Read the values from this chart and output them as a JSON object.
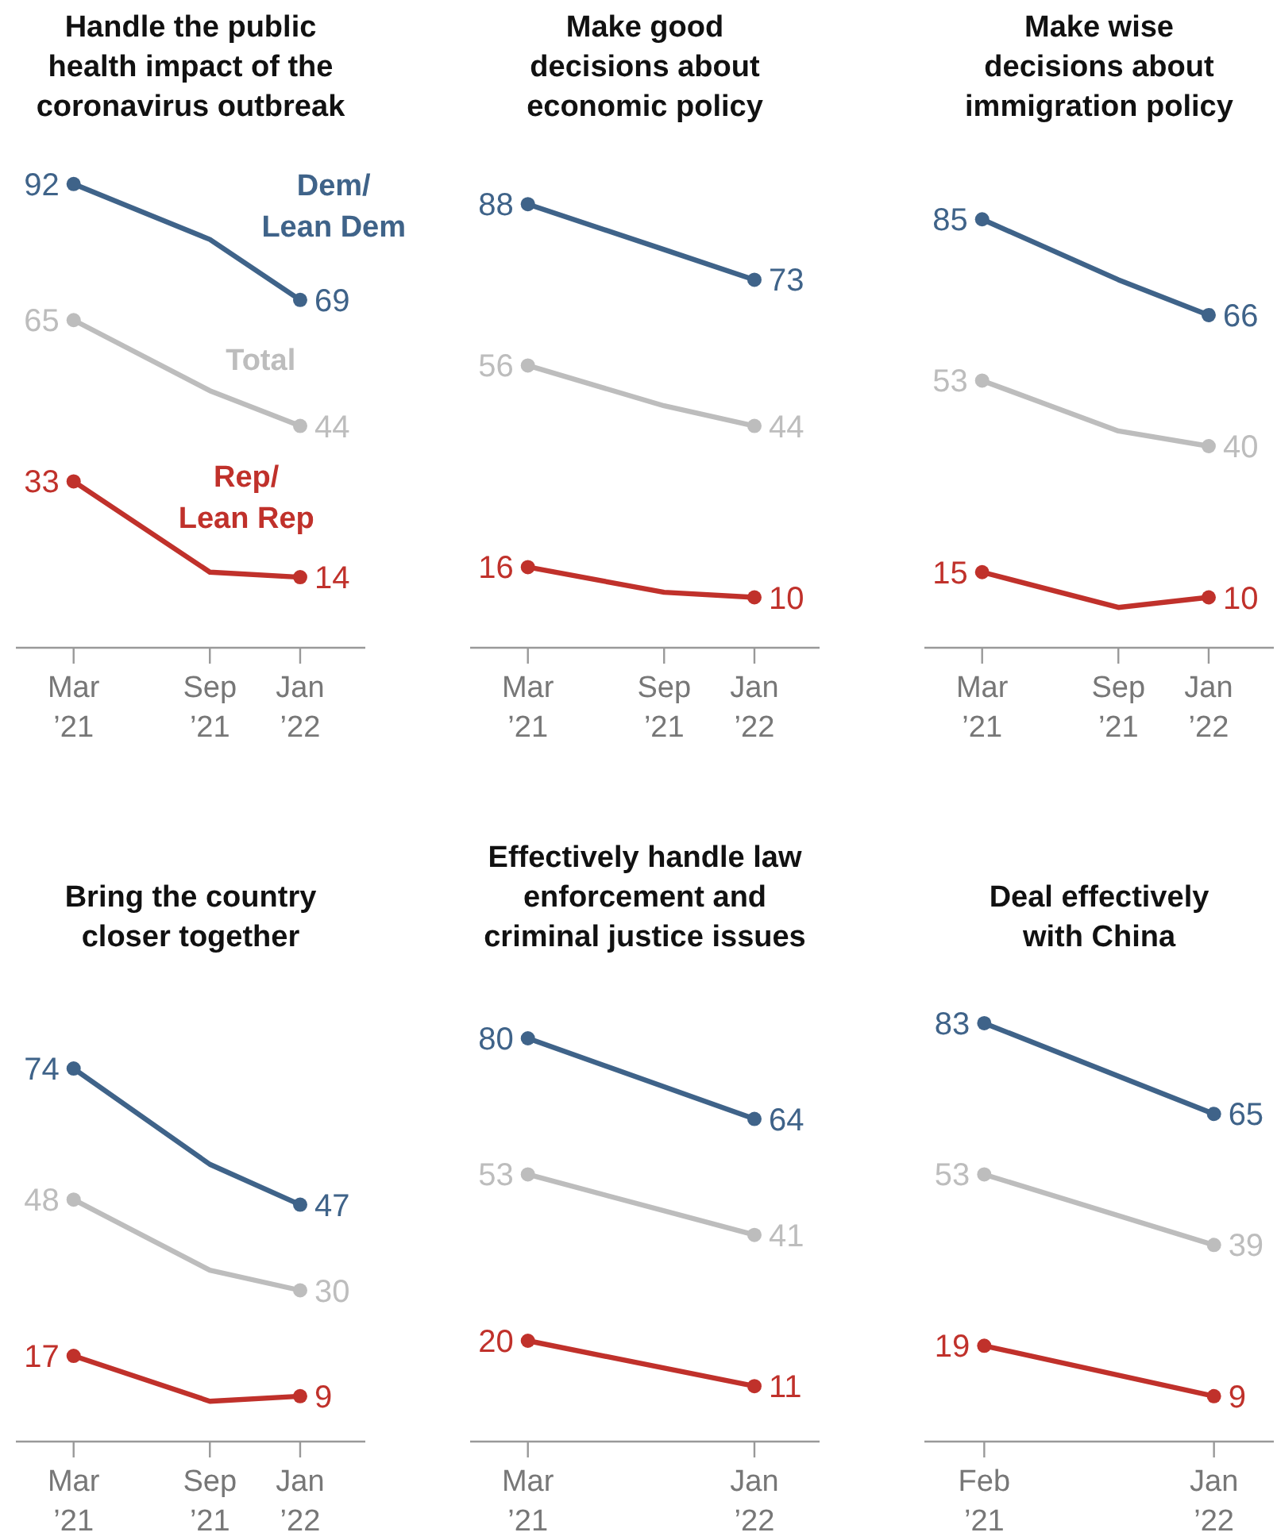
{
  "chart_data": [
    {
      "type": "line",
      "title": "Handle the public\nhealth impact of the\ncoronavirus outbreak",
      "x": [
        "2021-03",
        "2021-09",
        "2022-01"
      ],
      "xlim": [
        "2020-12-13",
        "2022-03-30"
      ],
      "xticks": [
        {
          "value": "2021-03",
          "label": "Mar\n’21"
        },
        {
          "value": "2021-09",
          "label": "Sep\n’21"
        },
        {
          "value": "2022-01",
          "label": "Jan\n’22"
        }
      ],
      "tick_labels": "x",
      "marker": "circle",
      "series": [
        {
          "name": "Dem/\nLean Dem",
          "color": "#3f6389",
          "values": [
            92,
            81,
            69
          ],
          "value_labels": [
            "92",
            null,
            "69"
          ]
        },
        {
          "name": "Total",
          "color": "#bdbdbd",
          "values": [
            65,
            51,
            44
          ],
          "value_labels": [
            "65",
            null,
            "44"
          ]
        },
        {
          "name": "Rep/\nLean Rep",
          "color": "#c0312b",
          "values": [
            33,
            15,
            14
          ],
          "value_labels": [
            "33",
            null,
            "14"
          ]
        }
      ]
    },
    {
      "type": "line",
      "title": "Make good\ndecisions about\neconomic policy",
      "x": [
        "2021-03",
        "2021-09",
        "2022-01"
      ],
      "xlim": [
        "2020-12-13",
        "2022-03-30"
      ],
      "xticks": [
        {
          "value": "2021-03",
          "label": "Mar\n’21"
        },
        {
          "value": "2021-09",
          "label": "Sep\n’21"
        },
        {
          "value": "2022-01",
          "label": "Jan\n’22"
        }
      ],
      "tick_labels": "x",
      "marker": "circle",
      "series": [
        {
          "color": "#3f6389",
          "values": [
            88,
            79,
            73
          ],
          "value_labels": [
            "88",
            null,
            "73"
          ]
        },
        {
          "color": "#bdbdbd",
          "values": [
            56,
            48,
            44
          ],
          "value_labels": [
            "56",
            null,
            "44"
          ]
        },
        {
          "color": "#c0312b",
          "values": [
            16,
            11,
            10
          ],
          "value_labels": [
            "16",
            null,
            "10"
          ]
        }
      ]
    },
    {
      "type": "line",
      "title": "Make wise\ndecisions about\nimmigration policy",
      "x": [
        "2021-03",
        "2021-09",
        "2022-01"
      ],
      "xlim": [
        "2020-12-13",
        "2022-03-30"
      ],
      "xticks": [
        {
          "value": "2021-03",
          "label": "Mar\n’21"
        },
        {
          "value": "2021-09",
          "label": "Sep\n’21"
        },
        {
          "value": "2022-01",
          "label": "Jan\n’22"
        }
      ],
      "tick_labels": "x",
      "marker": "circle",
      "series": [
        {
          "color": "#3f6389",
          "values": [
            85,
            73,
            66
          ],
          "value_labels": [
            "85",
            null,
            "66"
          ]
        },
        {
          "color": "#bdbdbd",
          "values": [
            53,
            43,
            40
          ],
          "value_labels": [
            "53",
            null,
            "40"
          ]
        },
        {
          "color": "#c0312b",
          "values": [
            15,
            8,
            10
          ],
          "value_labels": [
            "15",
            null,
            "10"
          ]
        }
      ]
    },
    {
      "type": "line",
      "title": "Bring the country\ncloser together",
      "x": [
        "2021-03",
        "2021-09",
        "2022-01"
      ],
      "xlim": [
        "2020-12-13",
        "2022-03-30"
      ],
      "xticks": [
        {
          "value": "2021-03",
          "label": "Mar\n’21"
        },
        {
          "value": "2021-09",
          "label": "Sep\n’21"
        },
        {
          "value": "2022-01",
          "label": "Jan\n’22"
        }
      ],
      "tick_labels": "x",
      "marker": "circle",
      "series": [
        {
          "color": "#3f6389",
          "values": [
            74,
            55,
            47
          ],
          "value_labels": [
            "74",
            null,
            "47"
          ]
        },
        {
          "color": "#bdbdbd",
          "values": [
            48,
            34,
            30
          ],
          "value_labels": [
            "48",
            null,
            "30"
          ]
        },
        {
          "color": "#c0312b",
          "values": [
            17,
            8,
            9
          ],
          "value_labels": [
            "17",
            null,
            "9"
          ]
        }
      ]
    },
    {
      "type": "line",
      "title": "Effectively handle law\nenforcement and\ncriminal justice issues",
      "x": [
        "2021-03",
        "2022-01"
      ],
      "xlim": [
        "2020-12-13",
        "2022-03-30"
      ],
      "xticks": [
        {
          "value": "2021-03",
          "label": "Mar\n’21"
        },
        {
          "value": "2022-01",
          "label": "Jan\n’22"
        }
      ],
      "tick_labels": "x",
      "marker": "circle",
      "series": [
        {
          "color": "#3f6389",
          "values": [
            80,
            64
          ],
          "value_labels": [
            "80",
            "64"
          ]
        },
        {
          "color": "#bdbdbd",
          "values": [
            53,
            41
          ],
          "value_labels": [
            "53",
            "41"
          ]
        },
        {
          "color": "#c0312b",
          "values": [
            20,
            11
          ],
          "value_labels": [
            "20",
            "11"
          ]
        }
      ]
    },
    {
      "type": "line",
      "title": "Deal effectively\nwith China",
      "x": [
        "2021-02",
        "2022-01"
      ],
      "xlim": [
        "2020-11-06",
        "2022-03-29"
      ],
      "xticks": [
        {
          "value": "2021-02",
          "label": "Feb\n’21"
        },
        {
          "value": "2022-01",
          "label": "Jan\n’22"
        }
      ],
      "tick_labels": "x",
      "marker": "circle",
      "series": [
        {
          "color": "#3f6389",
          "values": [
            83,
            65
          ],
          "value_labels": [
            "83",
            "65"
          ]
        },
        {
          "color": "#bdbdbd",
          "values": [
            53,
            39
          ],
          "value_labels": [
            "53",
            "39"
          ]
        },
        {
          "color": "#c0312b",
          "values": [
            19,
            9
          ],
          "value_labels": [
            "19",
            "9"
          ]
        }
      ]
    }
  ]
}
